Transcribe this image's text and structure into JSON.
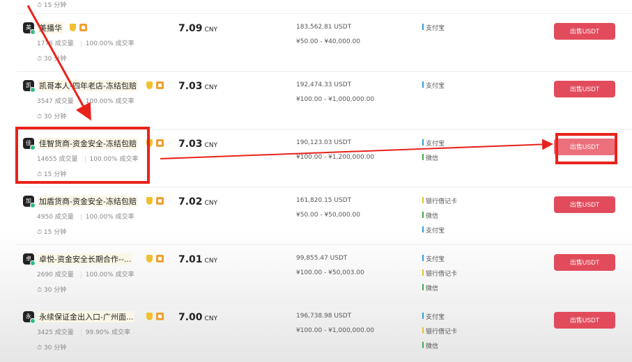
{
  "top_partial": {
    "time": "15 分钟"
  },
  "rows": [
    {
      "avatar": "美",
      "name": "美播华",
      "volume": "1776 成交量",
      "rate": "100.00% 成交率",
      "time": "30 分钟",
      "price": "7.09",
      "currency": "CNY",
      "available": "183,562.81 USDT",
      "limit": "¥50.00 - ¥40,000.00",
      "payments": [
        {
          "label": "支付宝",
          "color": "#2b9fd9"
        }
      ],
      "button": "出售USDT"
    },
    {
      "avatar": "凯",
      "name": "凯哥本人-四年老店-冻结包赔",
      "volume": "3547 成交量",
      "rate": "100.00% 成交率",
      "time": "30 分钟",
      "price": "7.03",
      "currency": "CNY",
      "available": "192,474.33 USDT",
      "limit": "¥100.00 - ¥1,000,000.00",
      "payments": [
        {
          "label": "支付宝",
          "color": "#2b9fd9"
        }
      ],
      "button": "出售USDT"
    },
    {
      "avatar": "佳",
      "name": "佳智货商-资金安全-冻结包赔",
      "volume": "14655 成交量",
      "rate": "100.00% 成交率",
      "time": "15 分钟",
      "price": "7.03",
      "currency": "CNY",
      "available": "190,123.03 USDT",
      "limit": "¥100.00 - ¥1,200,000.00",
      "payments": [
        {
          "label": "支付宝",
          "color": "#2b9fd9"
        },
        {
          "label": "微信",
          "color": "#3cb043"
        }
      ],
      "button": "出售USDT"
    },
    {
      "avatar": "加",
      "name": "加盾货商-资金安全-冻结包赔",
      "volume": "4950 成交量",
      "rate": "100.00% 成交率",
      "time": "15 分钟",
      "price": "7.02",
      "currency": "CNY",
      "available": "161,820.15 USDT",
      "limit": "¥50.00 - ¥50,000.00",
      "payments": [
        {
          "label": "银行借记卡",
          "color": "#e8c030"
        },
        {
          "label": "微信",
          "color": "#3cb043"
        },
        {
          "label": "支付宝",
          "color": "#2b9fd9"
        }
      ],
      "button": "出售USDT"
    },
    {
      "avatar": "卓",
      "name": "卓悦-资金安全长期合作--...",
      "volume": "2690 成交量",
      "rate": "100.00% 成交率",
      "time": "30 分钟",
      "price": "7.01",
      "currency": "CNY",
      "available": "99,855.47 USDT",
      "limit": "¥100.00 - ¥50,003.00",
      "payments": [
        {
          "label": "支付宝",
          "color": "#2b9fd9"
        },
        {
          "label": "银行借记卡",
          "color": "#e8c030"
        },
        {
          "label": "微信",
          "color": "#3cb043"
        }
      ],
      "button": "出售USDT"
    },
    {
      "avatar": "永",
      "name": "永续保证金出入口-广州面...",
      "volume": "3425 成交量",
      "rate": "99.90% 成交率",
      "time": "30 分钟",
      "price": "7.00",
      "currency": "CNY",
      "available": "196,738.98 USDT",
      "limit": "¥100.00 - ¥1,000,000.00",
      "payments": [
        {
          "label": "支付宝",
          "color": "#2b9fd9"
        },
        {
          "label": "银行借记卡",
          "color": "#e8c030"
        },
        {
          "label": "微信",
          "color": "#3cb043"
        }
      ],
      "button": "出售USDT"
    }
  ],
  "colors": {
    "sell_button": "#e24b5c",
    "annotation": "#e8231b"
  }
}
